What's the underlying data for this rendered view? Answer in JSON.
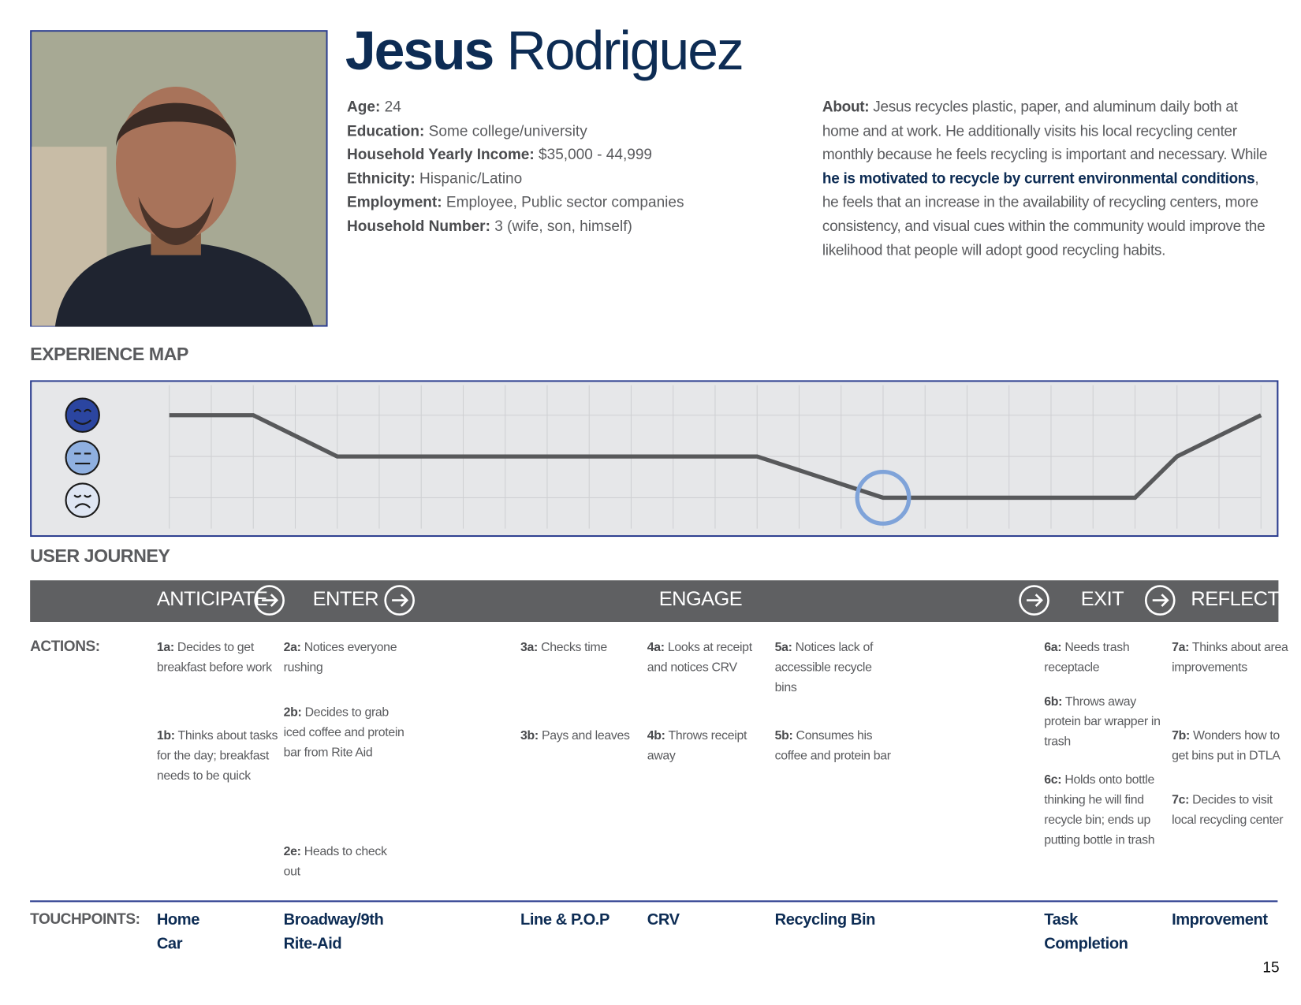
{
  "persona": {
    "first_name": "Jesus",
    "last_name": "Rodriguez",
    "details": [
      {
        "label": "Age:",
        "value": "24"
      },
      {
        "label": "Education:",
        "value": "Some college/university"
      },
      {
        "label": "Household Yearly Income:",
        "value": "$35,000 - 44,999"
      },
      {
        "label": "Ethnicity:",
        "value": "Hispanic/Latino"
      },
      {
        "label": "Employment:",
        "value": "Employee, Public sector companies"
      },
      {
        "label": "Household Number:",
        "value": "3 (wife, son, himself)"
      }
    ],
    "about": {
      "label": "About:",
      "text_before": "Jesus recycles plastic, paper, and aluminum daily both at home and at work. He additionally visits his local recycling center monthly because he feels recycling is important and necessary. While",
      "emphasis": "he is motivated to recycle by current environmental conditions",
      "text_after": ", he feels that an increase in the availability of recycling centers, more consistency, and visual cues within the community would improve the likelihood that people will adopt good recycling habits."
    }
  },
  "experience_map": {
    "title": "EXPERIENCE MAP",
    "xlim": [
      0,
      26
    ],
    "ylim": [
      -1,
      1
    ],
    "x": [
      0,
      2,
      4,
      14,
      17,
      23,
      24,
      26
    ],
    "levels": [
      1,
      1,
      0,
      0,
      -1,
      -1,
      0,
      1
    ],
    "highlight": 4
  },
  "user_journey": {
    "title": "USER JOURNEY",
    "stages": [
      "ANTICIPATE",
      "ENTER",
      "ENGAGE",
      "EXIT",
      "REFLECT"
    ],
    "actions_label": "ACTIONS:",
    "touchpoints_label": "TOUCHPOINTS:",
    "columns": [
      {
        "actions": [
          {
            "id": "1a:",
            "text": "Decides to get breakfast before work"
          },
          {
            "id": "1b:",
            "text": "Thinks about tasks for the day; breakfast needs to be quick"
          }
        ],
        "touchpoints": [
          "Home",
          "Car"
        ]
      },
      {
        "actions": [
          {
            "id": "2a:",
            "text": "Notices everyone rushing"
          },
          {
            "id": "2b:",
            "text": "Decides to grab iced coffee and protein bar from Rite Aid"
          },
          {
            "id": "2e:",
            "text": "Heads to check out"
          }
        ],
        "touchpoints": [
          "Broadway/9th",
          "Rite-Aid"
        ]
      },
      {
        "actions": [
          {
            "id": "3a:",
            "text": "Checks time"
          },
          {
            "id": "3b:",
            "text": "Pays and leaves"
          }
        ],
        "touchpoints": [
          "Line & P.O.P"
        ]
      },
      {
        "actions": [
          {
            "id": "4a:",
            "text": "Looks at receipt and notices CRV"
          },
          {
            "id": "4b:",
            "text": "Throws receipt away"
          }
        ],
        "touchpoints": [
          "CRV"
        ]
      },
      {
        "actions": [
          {
            "id": "5a:",
            "text": "Notices lack of accessible recycle bins"
          },
          {
            "id": "5b:",
            "text": "Consumes his coffee and protein bar"
          }
        ],
        "touchpoints": [
          "Recycling Bin"
        ]
      },
      {
        "actions": [
          {
            "id": "6a:",
            "text": "Needs trash receptacle"
          },
          {
            "id": "6b:",
            "text": "Throws away protein bar wrapper in trash"
          },
          {
            "id": "6c:",
            "text": "Holds onto bottle thinking he will find recycle bin; ends up putting bottle in trash"
          }
        ],
        "touchpoints": [
          "Task Completion"
        ]
      },
      {
        "actions": [
          {
            "id": "7a:",
            "text": "Thinks about area improvements"
          },
          {
            "id": "7b:",
            "text": "Wonders how to get bins put in DTLA"
          },
          {
            "id": "7c:",
            "text": "Decides to visit local recycling center"
          }
        ],
        "touchpoints": [
          "Improvement"
        ]
      }
    ]
  },
  "page_number": "15"
}
